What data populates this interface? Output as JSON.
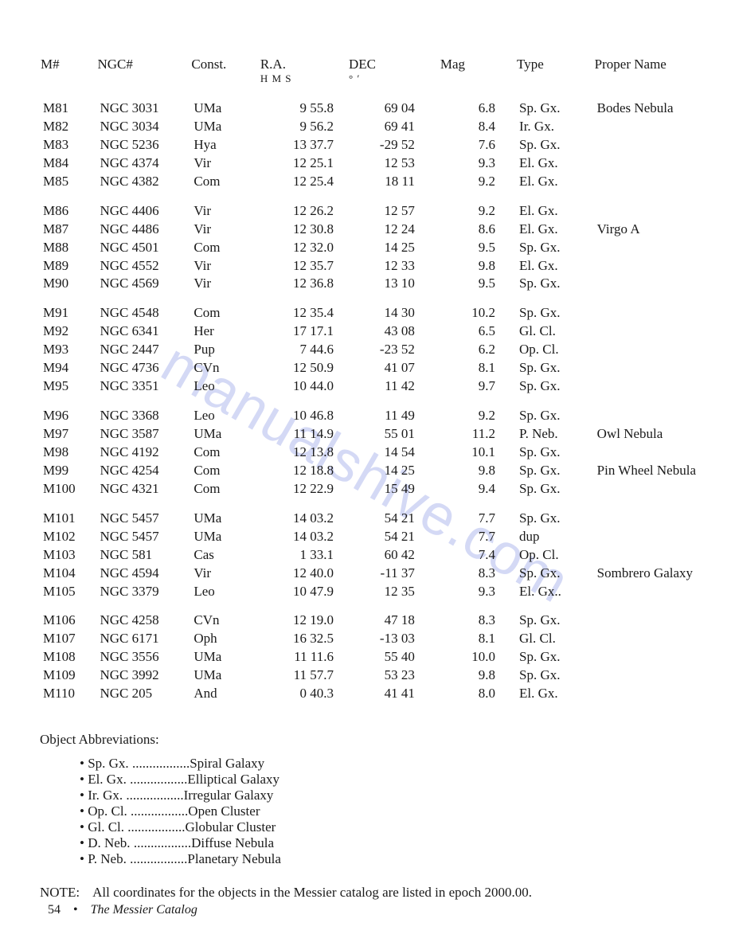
{
  "watermark_text": "manualshive.com",
  "headers": {
    "m": "M#",
    "ngc": "NGC#",
    "const": "Const.",
    "ra": "R.A.",
    "ra_sub": "H M S",
    "dec": "DEC",
    "dec_sub": "°  ′",
    "mag": "Mag",
    "type": "Type",
    "proper": "Proper Name"
  },
  "groups": [
    [
      {
        "m": "M81",
        "ngc": "NGC 3031",
        "con": "UMa",
        "ra": "9 55.8",
        "dec": "69 04",
        "mag": "6.8",
        "typ": "Sp. Gx.",
        "pn": "Bodes Nebula"
      },
      {
        "m": "M82",
        "ngc": "NGC 3034",
        "con": "UMa",
        "ra": "9 56.2",
        "dec": "69 41",
        "mag": "8.4",
        "typ": "Ir. Gx.",
        "pn": ""
      },
      {
        "m": "M83",
        "ngc": "NGC 5236",
        "con": "Hya",
        "ra": "13 37.7",
        "dec": "-29 52",
        "mag": "7.6",
        "typ": "Sp. Gx.",
        "pn": ""
      },
      {
        "m": "M84",
        "ngc": "NGC 4374",
        "con": "Vir",
        "ra": "12 25.1",
        "dec": "12 53",
        "mag": "9.3",
        "typ": "El. Gx.",
        "pn": ""
      },
      {
        "m": "M85",
        "ngc": "NGC 4382",
        "con": "Com",
        "ra": "12 25.4",
        "dec": "18 11",
        "mag": "9.2",
        "typ": "El. Gx.",
        "pn": ""
      }
    ],
    [
      {
        "m": "M86",
        "ngc": "NGC 4406",
        "con": "Vir",
        "ra": "12 26.2",
        "dec": "12 57",
        "mag": "9.2",
        "typ": "El. Gx.",
        "pn": ""
      },
      {
        "m": "M87",
        "ngc": "NGC 4486",
        "con": "Vir",
        "ra": "12 30.8",
        "dec": "12 24",
        "mag": "8.6",
        "typ": "El. Gx.",
        "pn": "Virgo A"
      },
      {
        "m": "M88",
        "ngc": "NGC 4501",
        "con": "Com",
        "ra": "12 32.0",
        "dec": "14 25",
        "mag": "9.5",
        "typ": "Sp. Gx.",
        "pn": ""
      },
      {
        "m": "M89",
        "ngc": "NGC 4552",
        "con": "Vir",
        "ra": "12 35.7",
        "dec": "12 33",
        "mag": "9.8",
        "typ": "El. Gx.",
        "pn": ""
      },
      {
        "m": "M90",
        "ngc": "NGC 4569",
        "con": "Vir",
        "ra": "12 36.8",
        "dec": "13 10",
        "mag": "9.5",
        "typ": "Sp. Gx.",
        "pn": ""
      }
    ],
    [
      {
        "m": "M91",
        "ngc": "NGC 4548",
        "con": "Com",
        "ra": "12 35.4",
        "dec": "14 30",
        "mag": "10.2",
        "typ": "Sp. Gx.",
        "pn": ""
      },
      {
        "m": "M92",
        "ngc": "NGC 6341",
        "con": "Her",
        "ra": "17 17.1",
        "dec": "43 08",
        "mag": "6.5",
        "typ": "Gl. Cl.",
        "pn": ""
      },
      {
        "m": "M93",
        "ngc": "NGC 2447",
        "con": "Pup",
        "ra": "7 44.6",
        "dec": "-23 52",
        "mag": "6.2",
        "typ": "Op. Cl.",
        "pn": ""
      },
      {
        "m": "M94",
        "ngc": "NGC 4736",
        "con": "CVn",
        "ra": "12 50.9",
        "dec": "41 07",
        "mag": "8.1",
        "typ": "Sp. Gx.",
        "pn": ""
      },
      {
        "m": "M95",
        "ngc": "NGC 3351",
        "con": "Leo",
        "ra": "10 44.0",
        "dec": "11 42",
        "mag": "9.7",
        "typ": "Sp. Gx.",
        "pn": ""
      }
    ],
    [
      {
        "m": "M96",
        "ngc": "NGC 3368",
        "con": "Leo",
        "ra": "10 46.8",
        "dec": "11 49",
        "mag": "9.2",
        "typ": "Sp. Gx.",
        "pn": ""
      },
      {
        "m": "M97",
        "ngc": "NGC 3587",
        "con": "UMa",
        "ra": "11 14.9",
        "dec": "55 01",
        "mag": "11.2",
        "typ": "P. Neb.",
        "pn": "Owl Nebula"
      },
      {
        "m": "M98",
        "ngc": "NGC 4192",
        "con": "Com",
        "ra": "12 13.8",
        "dec": "14 54",
        "mag": "10.1",
        "typ": "Sp. Gx.",
        "pn": ""
      },
      {
        "m": "M99",
        "ngc": "NGC 4254",
        "con": "Com",
        "ra": "12 18.8",
        "dec": "14 25",
        "mag": "9.8",
        "typ": "Sp. Gx.",
        "pn": "Pin Wheel Nebula"
      },
      {
        "m": "M100",
        "ngc": "NGC 4321",
        "con": "Com",
        "ra": "12 22.9",
        "dec": "15 49",
        "mag": "9.4",
        "typ": "Sp. Gx.",
        "pn": ""
      }
    ],
    [
      {
        "m": "M101",
        "ngc": "NGC 5457",
        "con": "UMa",
        "ra": "14 03.2",
        "dec": "54 21",
        "mag": "7.7",
        "typ": "Sp. Gx.",
        "pn": ""
      },
      {
        "m": "M102",
        "ngc": "NGC 5457",
        "con": "UMa",
        "ra": "14 03.2",
        "dec": "54 21",
        "mag": "7.7",
        "typ": "dup",
        "pn": ""
      },
      {
        "m": "M103",
        "ngc": "NGC 581",
        "con": "Cas",
        "ra": "1 33.1",
        "dec": "60 42",
        "mag": "7.4",
        "typ": "Op. Cl.",
        "pn": ""
      },
      {
        "m": "M104",
        "ngc": "NGC 4594",
        "con": "Vir",
        "ra": "12 40.0",
        "dec": "-11 37",
        "mag": "8.3",
        "typ": "Sp. Gx.",
        "pn": "Sombrero Galaxy"
      },
      {
        "m": "M105",
        "ngc": "NGC 3379",
        "con": "Leo",
        "ra": "10 47.9",
        "dec": "12 35",
        "mag": "9.3",
        "typ": "El. Gx..",
        "pn": ""
      }
    ],
    [
      {
        "m": "M106",
        "ngc": "NGC 4258",
        "con": "CVn",
        "ra": "12 19.0",
        "dec": "47 18",
        "mag": "8.3",
        "typ": "Sp. Gx.",
        "pn": ""
      },
      {
        "m": "M107",
        "ngc": "NGC 6171",
        "con": "Oph",
        "ra": "16 32.5",
        "dec": "-13 03",
        "mag": "8.1",
        "typ": "Gl. Cl.",
        "pn": ""
      },
      {
        "m": "M108",
        "ngc": "NGC 3556",
        "con": "UMa",
        "ra": "11 11.6",
        "dec": "55 40",
        "mag": "10.0",
        "typ": "Sp. Gx.",
        "pn": ""
      },
      {
        "m": "M109",
        "ngc": "NGC 3992",
        "con": "UMa",
        "ra": "11 57.7",
        "dec": "53 23",
        "mag": "9.8",
        "typ": "Sp. Gx.",
        "pn": ""
      },
      {
        "m": "M110",
        "ngc": "NGC 205",
        "con": "And",
        "ra": "0 40.3",
        "dec": "41 41",
        "mag": "8.0",
        "typ": "El. Gx.",
        "pn": ""
      }
    ]
  ],
  "abbr_head": "Object Abbreviations:",
  "abbrs": [
    {
      "k": "Sp. Gx.",
      "v": "Spiral Galaxy"
    },
    {
      "k": "El. Gx.",
      "v": "Elliptical Galaxy"
    },
    {
      "k": "Ir. Gx.",
      "v": "Irregular Galaxy"
    },
    {
      "k": "Op. Cl.",
      "v": "Open Cluster"
    },
    {
      "k": "Gl. Cl.",
      "v": "Globular Cluster"
    },
    {
      "k": "D. Neb.",
      "v": "Diffuse Nebula"
    },
    {
      "k": "P. Neb.",
      "v": "Planetary Nebula"
    }
  ],
  "note_label": "NOTE:",
  "note_text": "All coordinates for the objects in the Messier catalog are listed in epoch 2000.00.",
  "footer_page": "54",
  "footer_bullet": "•",
  "footer_title": "The Messier Catalog"
}
